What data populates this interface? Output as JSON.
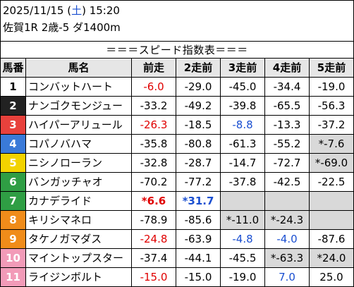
{
  "header": {
    "date_prefix": "2025/11/15 (",
    "weekday": "土",
    "date_suffix": ") 15:20",
    "race": "佐賀1R 2歳-5 ダ1400m",
    "banner": "＝＝＝スピード指数表＝＝＝"
  },
  "columns": [
    "馬番",
    "馬名",
    "前走",
    "2走前",
    "3走前",
    "4走前",
    "5走前"
  ],
  "colors": {
    "red_text": "#e00000",
    "blue_text": "#1a4fd1",
    "highlight_cell": "#d9d9d9"
  },
  "rows": [
    {
      "num": "1",
      "num_bg": "#ffffff",
      "num_color": "#000000",
      "name": "コンバットハート",
      "vals": [
        {
          "v": "-6.0",
          "c": "red"
        },
        {
          "v": "-29.0"
        },
        {
          "v": "-45.0"
        },
        {
          "v": "-34.4"
        },
        {
          "v": "-19.0"
        }
      ]
    },
    {
      "num": "2",
      "num_bg": "#222222",
      "num_color": "#ffffff",
      "name": "ナンゴクモンジュー",
      "vals": [
        {
          "v": "-33.2"
        },
        {
          "v": "-49.2"
        },
        {
          "v": "-39.8"
        },
        {
          "v": "-65.5"
        },
        {
          "v": "-56.3"
        }
      ]
    },
    {
      "num": "3",
      "num_bg": "#e8413c",
      "num_color": "#ffffff",
      "name": "ハイパーアリュール",
      "vals": [
        {
          "v": "-26.3",
          "c": "red"
        },
        {
          "v": "-18.5"
        },
        {
          "v": "-8.8",
          "c": "blue"
        },
        {
          "v": "-13.3"
        },
        {
          "v": "-37.2"
        }
      ]
    },
    {
      "num": "4",
      "num_bg": "#3a7ad8",
      "num_color": "#ffffff",
      "name": "コパノバハマ",
      "vals": [
        {
          "v": "-35.8"
        },
        {
          "v": "-80.8"
        },
        {
          "v": "-61.3"
        },
        {
          "v": "-55.2"
        },
        {
          "v": "*-7.6",
          "g": true
        }
      ]
    },
    {
      "num": "5",
      "num_bg": "#f2d300",
      "num_color": "#ffffff",
      "name": "ニシノローラン",
      "vals": [
        {
          "v": "-32.8"
        },
        {
          "v": "-28.7"
        },
        {
          "v": "-14.7"
        },
        {
          "v": "-72.7"
        },
        {
          "v": "*-69.0",
          "g": true
        }
      ]
    },
    {
      "num": "6",
      "num_bg": "#2f9e44",
      "num_color": "#ffffff",
      "name": "バンガッチャオ",
      "vals": [
        {
          "v": "-70.2"
        },
        {
          "v": "-77.2"
        },
        {
          "v": "-37.8"
        },
        {
          "v": "-42.5"
        },
        {
          "v": "-22.5"
        }
      ]
    },
    {
      "num": "7",
      "num_bg": "#2f9e44",
      "num_color": "#ffffff",
      "name": "カナデライド",
      "vals": [
        {
          "v": "*6.6",
          "c": "red",
          "b": true
        },
        {
          "v": "*31.7",
          "c": "blue",
          "b": true
        },
        {
          "v": "",
          "g": true
        },
        {
          "v": "",
          "g": true
        },
        {
          "v": "",
          "g": true
        }
      ]
    },
    {
      "num": "8",
      "num_bg": "#f08c1a",
      "num_color": "#ffffff",
      "name": "キリシマネロ",
      "vals": [
        {
          "v": "-78.9"
        },
        {
          "v": "-85.6"
        },
        {
          "v": "*-11.0",
          "g": true
        },
        {
          "v": "*-24.3",
          "g": true
        },
        {
          "v": "",
          "g": true
        }
      ]
    },
    {
      "num": "9",
      "num_bg": "#f08c1a",
      "num_color": "#ffffff",
      "name": "タケノガマダス",
      "vals": [
        {
          "v": "-24.8",
          "c": "red"
        },
        {
          "v": "-63.9"
        },
        {
          "v": "-4.8",
          "c": "blue"
        },
        {
          "v": "-4.0",
          "c": "blue"
        },
        {
          "v": "-87.6"
        }
      ]
    },
    {
      "num": "10",
      "num_bg": "#f29bb8",
      "num_color": "#ffffff",
      "name": "マイントップスター",
      "vals": [
        {
          "v": "-37.4"
        },
        {
          "v": "-44.1"
        },
        {
          "v": "-45.5"
        },
        {
          "v": "*-63.3",
          "g": true
        },
        {
          "v": "*24.0",
          "g": true
        }
      ]
    },
    {
      "num": "11",
      "num_bg": "#f29bb8",
      "num_color": "#ffffff",
      "name": "ライジンボルト",
      "vals": [
        {
          "v": "-15.0",
          "c": "red"
        },
        {
          "v": "-15.0"
        },
        {
          "v": "-19.0"
        },
        {
          "v": "7.0",
          "c": "blue"
        },
        {
          "v": "25.0"
        }
      ]
    }
  ]
}
